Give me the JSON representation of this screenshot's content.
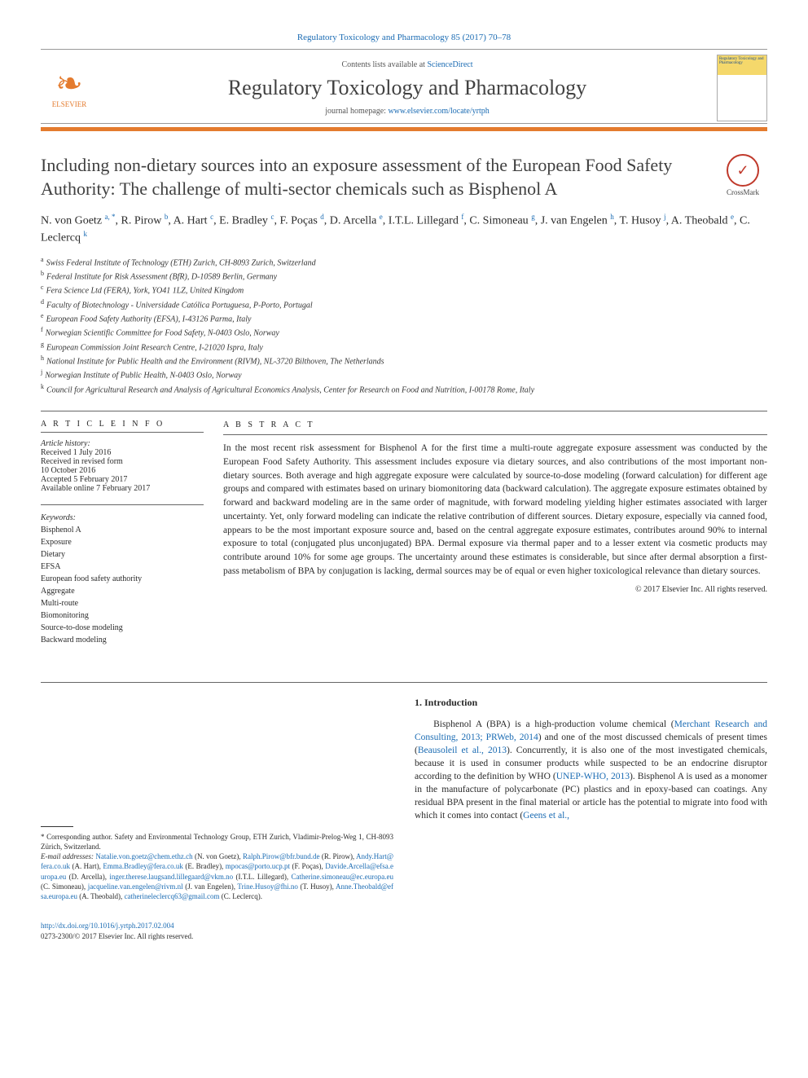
{
  "header": {
    "citation": "Regulatory Toxicology and Pharmacology 85 (2017) 70–78",
    "contents_prefix": "Contents lists available at ",
    "contents_link": "ScienceDirect",
    "journal_name": "Regulatory Toxicology and Pharmacology",
    "homepage_prefix": "journal homepage: ",
    "homepage_url": "www.elsevier.com/locate/yrtph",
    "publisher_logo_text": "ELSEVIER",
    "cover_text": "Regulatory Toxicology and Pharmacology",
    "crossmark": "CrossMark",
    "colors": {
      "link": "#1a6bb3",
      "accent": "#e47b2e",
      "rule": "#666666"
    }
  },
  "article": {
    "title": "Including non-dietary sources into an exposure assessment of the European Food Safety Authority: The challenge of multi-sector chemicals such as Bisphenol A",
    "authors_html": "N. von Goetz <sup>a, *</sup>, R. Pirow <sup>b</sup>, A. Hart <sup>c</sup>, E. Bradley <sup>c</sup>, F. Poças <sup>d</sup>, D. Arcella <sup>e</sup>, I.T.L. Lillegard <sup>f</sup>, C. Simoneau <sup>g</sup>, J. van Engelen <sup>h</sup>, T. Husoy <sup>j</sup>, A. Theobald <sup>e</sup>, C. Leclercq <sup>k</sup>",
    "affiliations": [
      {
        "sup": "a",
        "text": "Swiss Federal Institute of Technology (ETH) Zurich, CH-8093 Zurich, Switzerland"
      },
      {
        "sup": "b",
        "text": "Federal Institute for Risk Assessment (BfR), D-10589 Berlin, Germany"
      },
      {
        "sup": "c",
        "text": "Fera Science Ltd (FERA), York, YO41 1LZ, United Kingdom"
      },
      {
        "sup": "d",
        "text": "Faculty of Biotechnology - Universidade Católica Portuguesa, P-Porto, Portugal"
      },
      {
        "sup": "e",
        "text": "European Food Safety Authority (EFSA), I-43126 Parma, Italy"
      },
      {
        "sup": "f",
        "text": "Norwegian Scientific Committee for Food Safety, N-0403 Oslo, Norway"
      },
      {
        "sup": "g",
        "text": "European Commission Joint Research Centre, I-21020 Ispra, Italy"
      },
      {
        "sup": "h",
        "text": "National Institute for Public Health and the Environment (RIVM), NL-3720 Bilthoven, The Netherlands"
      },
      {
        "sup": "j",
        "text": "Norwegian Institute of Public Health, N-0403 Oslo, Norway"
      },
      {
        "sup": "k",
        "text": "Council for Agricultural Research and Analysis of Agricultural Economics Analysis, Center for Research on Food and Nutrition, I-00178 Rome, Italy"
      }
    ]
  },
  "meta": {
    "article_info_head": "A R T I C L E  I N F O",
    "abstract_head": "A B S T R A C T",
    "history_label": "Article history:",
    "history": [
      "Received 1 July 2016",
      "Received in revised form",
      "10 October 2016",
      "Accepted 5 February 2017",
      "Available online 7 February 2017"
    ],
    "keywords_label": "Keywords:",
    "keywords": [
      "Bisphenol A",
      "Exposure",
      "Dietary",
      "EFSA",
      "European food safety authority",
      "Aggregate",
      "Multi-route",
      "Biomonitoring",
      "Source-to-dose modeling",
      "Backward modeling"
    ]
  },
  "abstract": {
    "text": "In the most recent risk assessment for Bisphenol A for the first time a multi-route aggregate exposure assessment was conducted by the European Food Safety Authority. This assessment includes exposure via dietary sources, and also contributions of the most important non-dietary sources. Both average and high aggregate exposure were calculated by source-to-dose modeling (forward calculation) for different age groups and compared with estimates based on urinary biomonitoring data (backward calculation). The aggregate exposure estimates obtained by forward and backward modeling are in the same order of magnitude, with forward modeling yielding higher estimates associated with larger uncertainty. Yet, only forward modeling can indicate the relative contribution of different sources. Dietary exposure, especially via canned food, appears to be the most important exposure source and, based on the central aggregate exposure estimates, contributes around 90% to internal exposure to total (conjugated plus unconjugated) BPA. Dermal exposure via thermal paper and to a lesser extent via cosmetic products may contribute around 10% for some age groups. The uncertainty around these estimates is considerable, but since after dermal absorption a first-pass metabolism of BPA by conjugation is lacking, dermal sources may be of equal or even higher toxicological relevance than dietary sources.",
    "copyright": "© 2017 Elsevier Inc. All rights reserved."
  },
  "body": {
    "intro_head": "1. Introduction",
    "intro_text": "Bisphenol A (BPA) is a high-production volume chemical (Merchant Research and Consulting, 2013; PRWeb, 2014) and one of the most discussed chemicals of present times (Beausoleil et al., 2013). Concurrently, it is also one of the most investigated chemicals, because it is used in consumer products while suspected to be an endocrine disruptor according to the definition by WHO (UNEP-WHO, 2013). Bisphenol A is used as a monomer in the manufacture of polycarbonate (PC) plastics and in epoxy-based can coatings. Any residual BPA present in the final material or article has the potential to migrate into food with which it comes into contact (Geens et al.,"
  },
  "footnotes": {
    "corr": "* Corresponding author. Safety and Environmental Technology Group, ETH Zurich, Vladimir-Prelog-Weg 1, CH-8093 Zürich, Switzerland.",
    "emails_label": "E-mail addresses:",
    "emails": [
      {
        "addr": "Natalie.von.goetz@chem.ethz.ch",
        "name": "(N. von Goetz)"
      },
      {
        "addr": "Ralph.Pirow@bfr.bund.de",
        "name": "(R. Pirow)"
      },
      {
        "addr": "Andy.Hart@fera.co.uk",
        "name": "(A. Hart)"
      },
      {
        "addr": "Emma.Bradley@fera.co.uk",
        "name": "(E. Bradley)"
      },
      {
        "addr": "mpocas@porto.ucp.pt",
        "name": "(F. Poças)"
      },
      {
        "addr": "Davide.Arcella@efsa.europa.eu",
        "name": "(D. Arcella)"
      },
      {
        "addr": "inger.therese.laugsand.lillegaard@vkm.no",
        "name": "(I.T.L. Lillegard)"
      },
      {
        "addr": "Catherine.simoneau@ec.europa.eu",
        "name": "(C. Simoneau)"
      },
      {
        "addr": "jacqueline.van.engelen@rivm.nl",
        "name": "(J. van Engelen)"
      },
      {
        "addr": "Trine.Husoy@fhi.no",
        "name": "(T. Husoy)"
      },
      {
        "addr": "Anne.Theobald@efsa.europa.eu",
        "name": "(A. Theobald)"
      },
      {
        "addr": "catherineleclercq63@gmail.com",
        "name": "(C. Leclercq)"
      }
    ]
  },
  "doi": {
    "url": "http://dx.doi.org/10.1016/j.yrtph.2017.02.004",
    "issn_line": "0273-2300/© 2017 Elsevier Inc. All rights reserved."
  }
}
